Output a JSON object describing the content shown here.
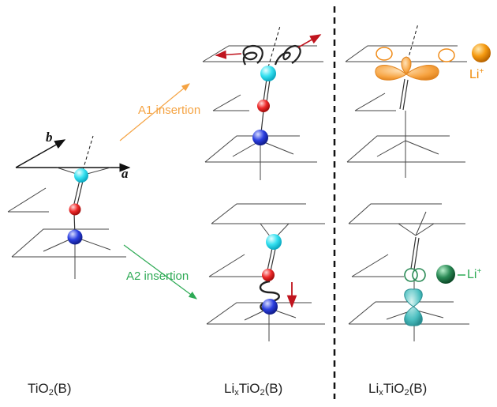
{
  "labels": {
    "axis_a": "a",
    "axis_b": "b",
    "a1_insertion": "A1 insertion",
    "a2_insertion": "A2 insertion",
    "li_ion_top": "Li",
    "li_ion_top_charge": "+",
    "li_ion_bottom": "Li",
    "li_ion_bottom_charge": "+"
  },
  "captions": {
    "left": {
      "base": "TiO",
      "sub1": "2",
      "rest": "(B)"
    },
    "middle": {
      "base": "Li",
      "sub_x": "x",
      "mid": "TiO",
      "sub2": "2",
      "rest": "(B)"
    },
    "right": {
      "base": "Li",
      "sub_x": "x",
      "mid": "TiO",
      "sub2": "2",
      "rest": "(B)"
    }
  },
  "colors": {
    "a1_orange": "#f5a342",
    "a2_green": "#2eaa55",
    "cyan_atom": "#35e0f0",
    "red_atom": "#ee2a2a",
    "blue_atom": "#2b3fe0",
    "li_orange": "#f08c0a",
    "li_green": "#1f7a4a",
    "orbital_orange": "#f7a340",
    "orbital_teal": "#4bbfc0",
    "arrow_red": "#c0141e"
  }
}
